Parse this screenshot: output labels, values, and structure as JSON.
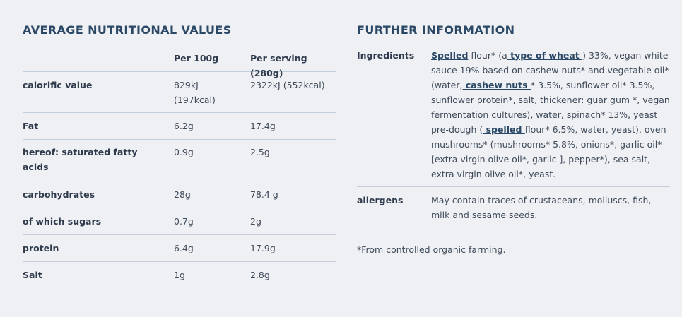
{
  "nutrition": {
    "title": "AVERAGE NUTRITIONAL VALUES",
    "columns": [
      "",
      "Per 100g",
      "Per serving (280g)"
    ],
    "rows": [
      {
        "label": "calorific value",
        "per100": "829kJ\n(197kcal)",
        "perServing": "2322kJ (552kcal)"
      },
      {
        "label": "Fat",
        "per100": "6.2g",
        "perServing": "17.4g"
      },
      {
        "label": "hereof: saturated fatty\nacids",
        "per100": "0.9g",
        "perServing": "2.5g"
      },
      {
        "label": "carbohydrates",
        "per100": "28g",
        "perServing": "78.4 g"
      },
      {
        "label": "of which sugars",
        "per100": "0.7g",
        "perServing": "2g"
      },
      {
        "label": "protein",
        "per100": "6.4g",
        "perServing": "17.9g"
      },
      {
        "label": "Salt",
        "per100": "1g",
        "perServing": "2.8g"
      }
    ]
  },
  "further": {
    "title": "FURTHER INFORMATION",
    "ingredients_label": "Ingredients",
    "ingredients_parts": [
      {
        "t": "Spelled",
        "u": true
      },
      {
        "t": " flour* (a",
        "u": false
      },
      {
        "t": " type of wheat ",
        "u": true
      },
      {
        "t": ") 33%, vegan white sauce 19% based on cashew nuts* and vegetable oil* (water,",
        "u": false
      },
      {
        "t": " cashew nuts ",
        "u": true
      },
      {
        "t": "* 3.5%, sunflower oil* 3.5%, sunflower protein*, salt, thickener: guar gum *, vegan fermentation cultures), water, spinach* 13%, yeast pre-dough (",
        "u": false
      },
      {
        "t": " spelled ",
        "u": true
      },
      {
        "t": "flour* 6.5%, water, yeast), oven mushrooms* (mushrooms* 5.8%, onions*, garlic oil* [extra virgin olive oil*, garlic ], pepper*), sea salt, extra virgin olive oil*, yeast.",
        "u": false
      }
    ],
    "allergens_label": "allergens",
    "allergens_text": "May contain traces of crustaceans, molluscs, fish, milk and sesame seeds.",
    "footnote": "*From controlled organic farming."
  }
}
